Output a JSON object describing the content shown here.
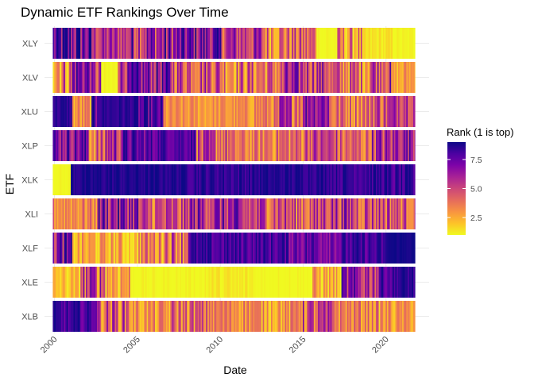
{
  "chart_data": {
    "type": "heatmap",
    "title": "Dynamic ETF Rankings Over Time",
    "xlabel": "Date",
    "ylabel": "ETF",
    "categories": [
      "XLY",
      "XLV",
      "XLU",
      "XLP",
      "XLK",
      "XLI",
      "XLF",
      "XLE",
      "XLB"
    ],
    "x_ticks": [
      "2000",
      "2005",
      "2010",
      "2015",
      "2020"
    ],
    "x_tick_values": [
      2000,
      2005,
      2010,
      2015,
      2020
    ],
    "xlim": [
      1999.4,
      2022.6
    ],
    "data_range": [
      1999.9,
      2021.75
    ],
    "legend": {
      "title": "Rank (1 is top)",
      "ticks": [
        "2.5",
        "5.0",
        "7.5"
      ],
      "tick_values": [
        2.5,
        5.0,
        7.5
      ],
      "range": [
        1,
        9
      ],
      "colors": [
        "#F0F921",
        "#FDC328",
        "#F89441",
        "#E56B5D",
        "#CB4679",
        "#A82296",
        "#7E03A8",
        "#4C02A1",
        "#0D0887"
      ]
    },
    "segments": {
      "XLY": [
        [
          1999.9,
          7.2,
          3.0
        ],
        [
          2002.2,
          5.5,
          2.0
        ],
        [
          2004.5,
          6.2,
          3.0
        ],
        [
          2007.5,
          6.8,
          2.5
        ],
        [
          2010.0,
          5.5,
          2.5
        ],
        [
          2012.5,
          4.0,
          2.5
        ],
        [
          2015.8,
          1.0,
          0.5
        ],
        [
          2017.0,
          3.0,
          2.5
        ],
        [
          2018.5,
          1.3,
          0.5
        ],
        [
          2020.5,
          1.0,
          0.3
        ]
      ],
      "XLV": [
        [
          1999.9,
          4.0,
          3.0
        ],
        [
          2001.0,
          7.0,
          2.5
        ],
        [
          2002.2,
          5.0,
          2.5
        ],
        [
          2002.8,
          1.0,
          0.3
        ],
        [
          2003.8,
          6.0,
          2.0
        ],
        [
          2004.5,
          6.5,
          2.5
        ],
        [
          2007.0,
          5.0,
          2.5
        ],
        [
          2010.0,
          4.0,
          2.5
        ],
        [
          2013.8,
          5.5,
          2.5
        ],
        [
          2016.5,
          4.0,
          2.5
        ],
        [
          2019.0,
          5.5,
          2.5
        ],
        [
          2020.3,
          2.5,
          1.0
        ],
        [
          2021.0,
          3.0,
          1.0
        ]
      ],
      "XLU": [
        [
          1999.9,
          8.5,
          0.5
        ],
        [
          2001.0,
          3.0,
          1.5
        ],
        [
          2002.2,
          7.0,
          2.0
        ],
        [
          2002.5,
          8.5,
          0.5
        ],
        [
          2005.0,
          7.5,
          1.5
        ],
        [
          2006.5,
          3.0,
          1.0
        ],
        [
          2009.0,
          3.0,
          1.0
        ],
        [
          2012.0,
          3.5,
          1.5
        ],
        [
          2013.5,
          5.0,
          2.5
        ],
        [
          2015.0,
          7.0,
          2.0
        ],
        [
          2016.5,
          4.0,
          2.0
        ],
        [
          2019.0,
          5.0,
          2.5
        ],
        [
          2020.5,
          6.0,
          2.0
        ]
      ],
      "XLP": [
        [
          1999.9,
          7.0,
          2.0
        ],
        [
          2002.0,
          4.0,
          2.5
        ],
        [
          2003.0,
          6.0,
          2.5
        ],
        [
          2004.0,
          7.5,
          1.5
        ],
        [
          2006.0,
          8.0,
          1.0
        ],
        [
          2008.5,
          4.5,
          2.5
        ],
        [
          2010.5,
          3.5,
          1.5
        ],
        [
          2012.5,
          4.0,
          2.0
        ],
        [
          2015.0,
          5.0,
          2.0
        ],
        [
          2017.0,
          4.0,
          2.0
        ],
        [
          2019.0,
          5.5,
          2.5
        ],
        [
          2020.5,
          6.5,
          2.0
        ]
      ],
      "XLK": [
        [
          1999.9,
          1.0,
          0.2
        ],
        [
          2000.9,
          8.7,
          0.5
        ],
        [
          2008.0,
          8.5,
          0.7
        ],
        [
          2012.0,
          8.6,
          0.5
        ],
        [
          2016.5,
          8.4,
          0.8
        ],
        [
          2020.0,
          8.0,
          1.0
        ]
      ],
      "XLI": [
        [
          1999.9,
          3.5,
          1.5
        ],
        [
          2002.5,
          6.5,
          2.5
        ],
        [
          2005.0,
          4.5,
          2.5
        ],
        [
          2008.0,
          6.0,
          2.5
        ],
        [
          2011.0,
          5.0,
          2.5
        ],
        [
          2014.0,
          4.5,
          2.5
        ],
        [
          2016.0,
          5.5,
          2.5
        ],
        [
          2018.0,
          5.0,
          2.5
        ],
        [
          2020.5,
          4.5,
          2.0
        ]
      ],
      "XLF": [
        [
          1999.9,
          6.5,
          2.5
        ],
        [
          2001.0,
          2.5,
          1.5
        ],
        [
          2004.0,
          2.0,
          1.0
        ],
        [
          2005.0,
          3.5,
          2.0
        ],
        [
          2006.5,
          4.5,
          2.5
        ],
        [
          2008.0,
          8.0,
          1.0
        ],
        [
          2011.0,
          8.0,
          1.0
        ],
        [
          2014.0,
          7.5,
          1.5
        ],
        [
          2017.5,
          8.0,
          1.0
        ],
        [
          2020.0,
          8.9,
          0.2
        ]
      ],
      "XLE": [
        [
          1999.9,
          2.0,
          1.0
        ],
        [
          2001.5,
          5.0,
          3.0
        ],
        [
          2003.0,
          3.0,
          2.0
        ],
        [
          2004.5,
          1.0,
          0.3
        ],
        [
          2009.0,
          1.2,
          0.5
        ],
        [
          2012.0,
          1.0,
          0.3
        ],
        [
          2015.5,
          2.5,
          1.5
        ],
        [
          2017.0,
          1.5,
          0.7
        ],
        [
          2017.3,
          6.0,
          2.5
        ],
        [
          2019.5,
          8.0,
          1.0
        ],
        [
          2020.5,
          8.5,
          0.7
        ]
      ],
      "XLB": [
        [
          1999.9,
          8.0,
          1.0
        ],
        [
          2002.5,
          4.5,
          2.5
        ],
        [
          2004.5,
          3.0,
          1.5
        ],
        [
          2007.0,
          4.0,
          2.0
        ],
        [
          2009.5,
          3.5,
          1.5
        ],
        [
          2012.0,
          3.0,
          1.5
        ],
        [
          2014.5,
          4.5,
          2.5
        ],
        [
          2017.0,
          3.5,
          1.5
        ],
        [
          2019.5,
          3.0,
          1.5
        ],
        [
          2020.5,
          3.0,
          1.0
        ]
      ]
    },
    "bar_step_years": 0.0833
  }
}
